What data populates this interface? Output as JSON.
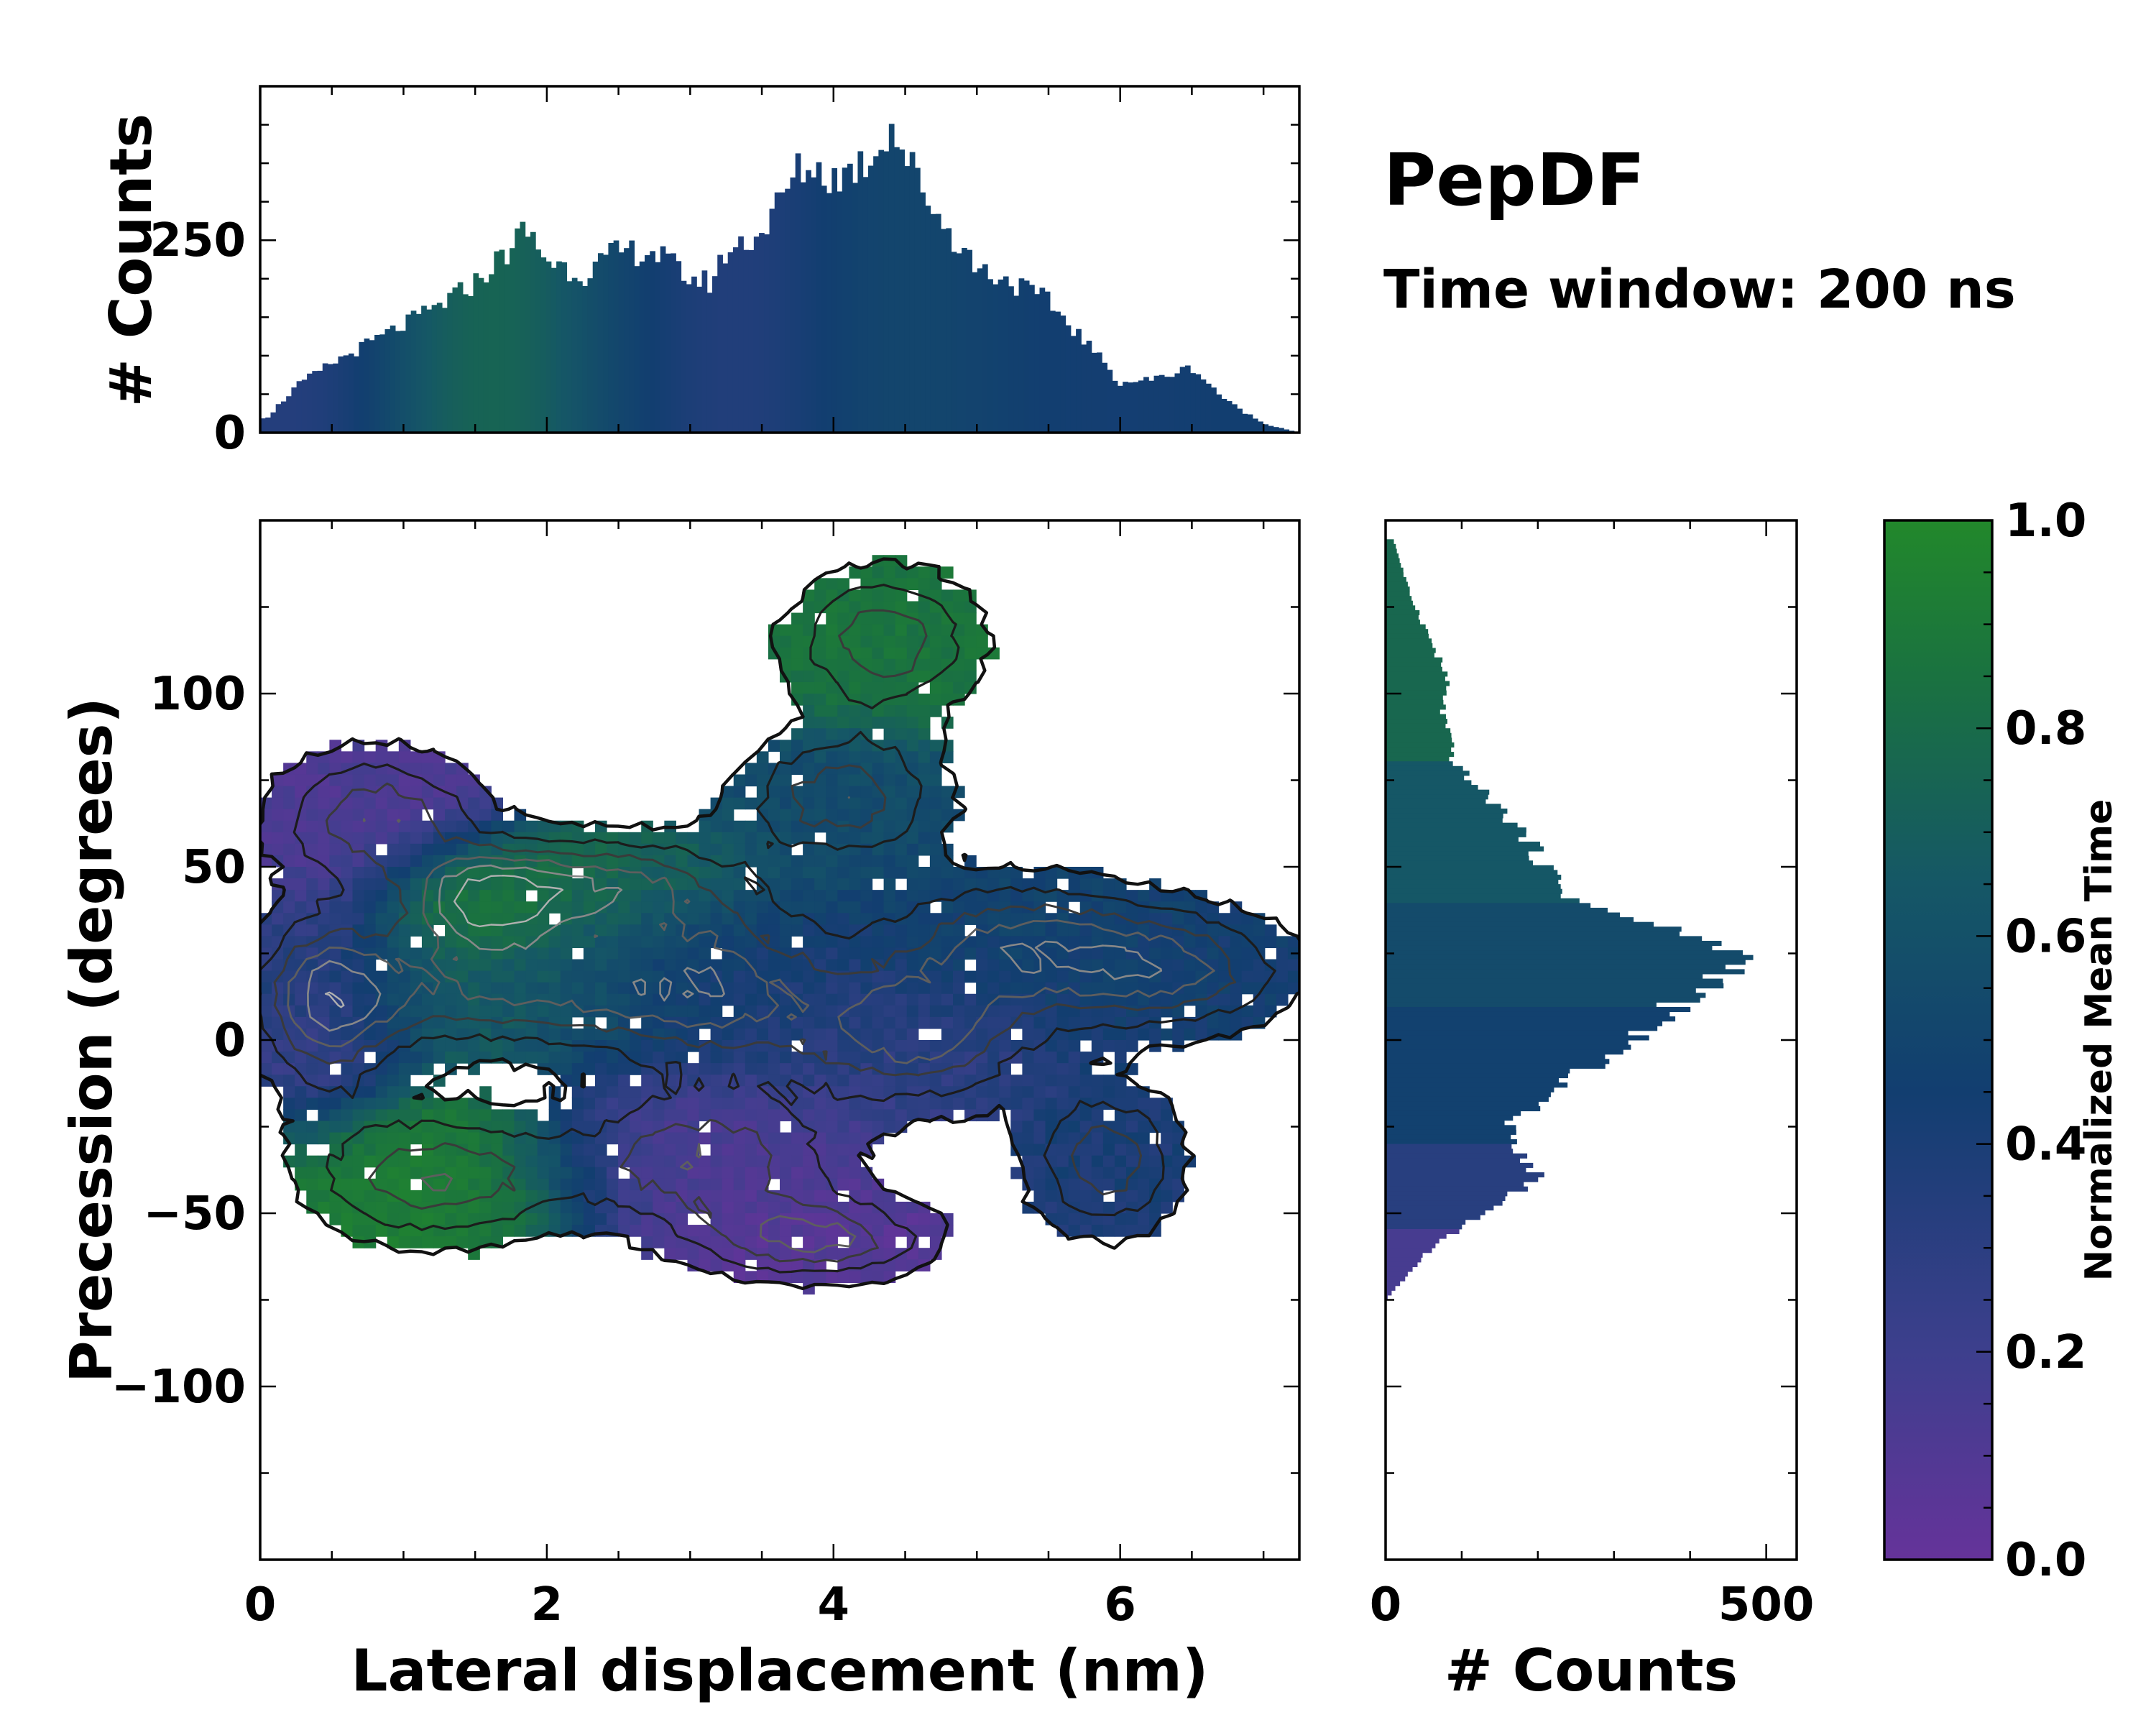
{
  "chart_data": {
    "type": "heatmap",
    "title": "PepDF",
    "subtitle": "Time window: 200 ns",
    "colors": {
      "cmap": [
        "#65339a",
        "#3d3f8d",
        "#123e70",
        "#155766",
        "#1a7240",
        "#22882b"
      ],
      "contour_outline": "#111111",
      "contour_inner": "#888888",
      "background": "#ffffff"
    },
    "main": {
      "xlabel": "Lateral displacement (nm)",
      "ylabel": "Precession (degrees)",
      "xlim": [
        0,
        7.25
      ],
      "ylim": [
        -150,
        150
      ],
      "xticks": [
        0,
        2,
        4,
        6
      ],
      "xtick_labels": [
        "0",
        "2",
        "4",
        "6"
      ],
      "yticks": [
        -100,
        -50,
        0,
        50,
        100
      ],
      "ytick_labels": [
        "−100",
        "−50",
        "0",
        "50",
        "100"
      ],
      "regions": [
        {
          "x": 0.8,
          "y": 65,
          "rx": 0.75,
          "ry": 20,
          "value": 0.12
        },
        {
          "x": 0.45,
          "y": 10,
          "rx": 0.5,
          "ry": 28,
          "value": 0.18
        },
        {
          "x": 1.55,
          "y": 40,
          "rx": 0.55,
          "ry": 14,
          "value": 0.92
        },
        {
          "x": 2.4,
          "y": 45,
          "rx": 0.95,
          "ry": 15,
          "value": 0.72
        },
        {
          "x": 1.6,
          "y": 15,
          "rx": 1.25,
          "ry": 18,
          "value": 0.62
        },
        {
          "x": 1.2,
          "y": -40,
          "rx": 0.9,
          "ry": 20,
          "value": 0.9
        },
        {
          "x": 3.1,
          "y": -35,
          "rx": 1.0,
          "ry": 20,
          "value": 0.12
        },
        {
          "x": 3.9,
          "y": -58,
          "rx": 0.85,
          "ry": 12,
          "value": 0.07
        },
        {
          "x": 3.2,
          "y": 15,
          "rx": 0.95,
          "ry": 25,
          "value": 0.35
        },
        {
          "x": 4.35,
          "y": 115,
          "rx": 0.7,
          "ry": 22,
          "value": 0.82
        },
        {
          "x": 4.05,
          "y": 70,
          "rx": 0.75,
          "ry": 18,
          "value": 0.5
        },
        {
          "x": 5.25,
          "y": 28,
          "rx": 0.95,
          "ry": 20,
          "value": 0.44
        },
        {
          "x": 6.4,
          "y": 20,
          "rx": 0.85,
          "ry": 18,
          "value": 0.4
        },
        {
          "x": 5.9,
          "y": -35,
          "rx": 0.55,
          "ry": 22,
          "value": 0.36
        },
        {
          "x": 4.6,
          "y": 0,
          "rx": 0.8,
          "ry": 20,
          "value": 0.28
        }
      ]
    },
    "top_histogram": {
      "ylabel": "# Counts",
      "ylim": [
        0,
        450
      ],
      "yticks": [
        0,
        250
      ],
      "ytick_labels": [
        "0",
        "250"
      ],
      "x": [
        0.05,
        0.25,
        0.5,
        0.75,
        1.0,
        1.25,
        1.5,
        1.75,
        1.85,
        2.0,
        2.25,
        2.5,
        2.75,
        3.0,
        3.15,
        3.25,
        3.5,
        3.75,
        3.85,
        4.0,
        4.25,
        4.4,
        4.5,
        4.75,
        5.0,
        5.25,
        5.5,
        5.75,
        6.0,
        6.25,
        6.5,
        6.75,
        7.0,
        7.25
      ],
      "counts": [
        20,
        60,
        90,
        115,
        140,
        165,
        195,
        240,
        265,
        225,
        205,
        235,
        235,
        200,
        195,
        235,
        260,
        340,
        345,
        330,
        355,
        400,
        360,
        275,
        215,
        195,
        170,
        120,
        65,
        70,
        85,
        40,
        12,
        0
      ]
    },
    "right_histogram": {
      "xlabel": "# Counts",
      "xlim": [
        0,
        540
      ],
      "xticks": [
        0,
        500
      ],
      "xtick_labels": [
        "0",
        "500"
      ],
      "y": [
        145,
        130,
        115,
        105,
        95,
        80,
        60,
        50,
        40,
        30,
        25,
        20,
        10,
        0,
        -10,
        -20,
        -25,
        -30,
        -35,
        -40,
        -50,
        -60,
        -70,
        -75
      ],
      "counts": [
        10,
        30,
        60,
        80,
        75,
        90,
        180,
        210,
        250,
        400,
        470,
        460,
        380,
        330,
        250,
        190,
        160,
        170,
        190,
        200,
        130,
        60,
        20,
        0
      ]
    },
    "colorbar": {
      "label": "Normalized Mean Time",
      "range": [
        0,
        1
      ],
      "ticks": [
        0.0,
        0.2,
        0.4,
        0.6,
        0.8,
        1.0
      ],
      "tick_labels": [
        "0.0",
        "0.2",
        "0.4",
        "0.6",
        "0.8",
        "1.0"
      ]
    }
  }
}
